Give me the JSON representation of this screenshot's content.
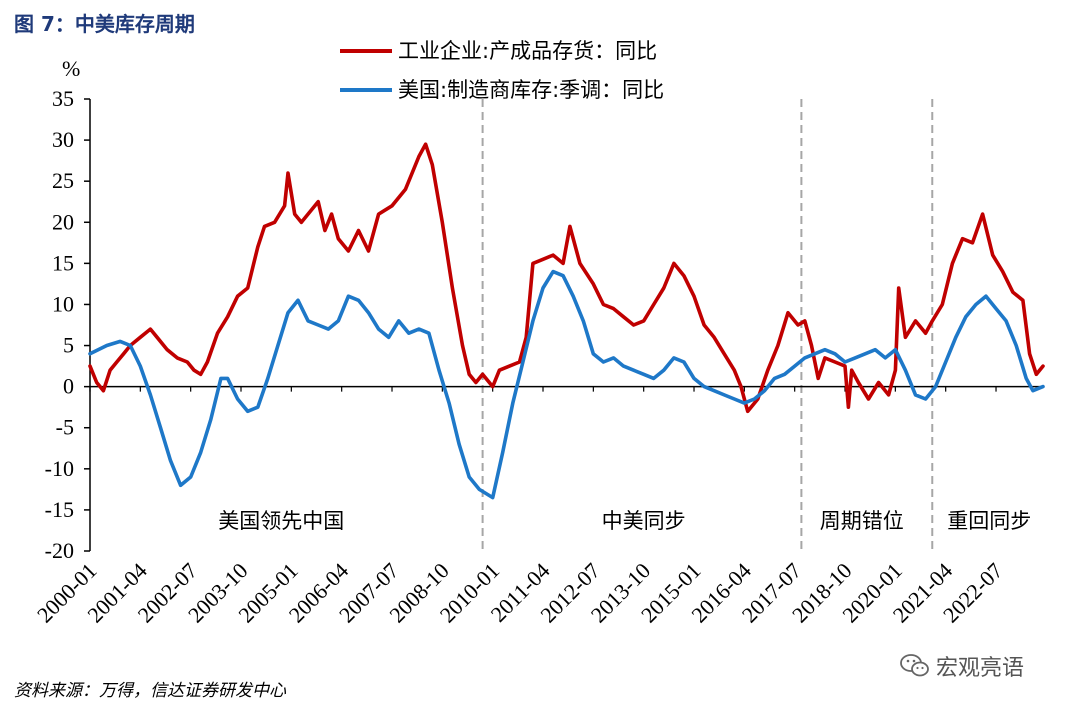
{
  "figure": {
    "title": "图 7：中美库存周期",
    "source": "资料来源：万得，信达证券研发中心",
    "watermark": "宏观亮语"
  },
  "colors": {
    "series1": "#c00000",
    "series2": "#1e78c8",
    "divider": "#a6a6a6"
  },
  "chart_data": {
    "type": "line",
    "ylabel": "%",
    "ylim": [
      -20,
      35
    ],
    "yticks": [
      35,
      30,
      25,
      20,
      15,
      10,
      5,
      0,
      -5,
      -10,
      -15,
      -20
    ],
    "xlim": [
      "2000-01",
      "2023-09"
    ],
    "xticks": [
      "2000-01",
      "2001-04",
      "2002-07",
      "2003-10",
      "2005-01",
      "2006-04",
      "2007-07",
      "2008-10",
      "2010-01",
      "2011-04",
      "2012-07",
      "2013-10",
      "2015-01",
      "2016-04",
      "2017-07",
      "2018-10",
      "2020-01",
      "2021-04",
      "2022-07"
    ],
    "grid": false,
    "legend_position": "top-center",
    "dividers": [
      "2009-10",
      "2017-09",
      "2020-12"
    ],
    "regions": [
      {
        "label": "美国领先中国",
        "center": "2004-10"
      },
      {
        "label": "中美同步",
        "center": "2013-10"
      },
      {
        "label": "周期错位",
        "center": "2019-03"
      },
      {
        "label": "重回同步",
        "center": "2022-05"
      }
    ],
    "series": [
      {
        "name": "工业企业:产成品存货：同比",
        "points": [
          [
            "2000-01",
            2.5
          ],
          [
            "2000-03",
            0.5
          ],
          [
            "2000-05",
            -0.5
          ],
          [
            "2000-07",
            2.0
          ],
          [
            "2000-09",
            3.0
          ],
          [
            "2000-11",
            4.0
          ],
          [
            "2001-01",
            5.0
          ],
          [
            "2001-04",
            6.0
          ],
          [
            "2001-07",
            7.0
          ],
          [
            "2001-09",
            6.0
          ],
          [
            "2001-12",
            4.5
          ],
          [
            "2002-03",
            3.5
          ],
          [
            "2002-06",
            3.0
          ],
          [
            "2002-08",
            2.0
          ],
          [
            "2002-10",
            1.5
          ],
          [
            "2002-12",
            3.0
          ],
          [
            "2003-03",
            6.5
          ],
          [
            "2003-06",
            8.5
          ],
          [
            "2003-09",
            11.0
          ],
          [
            "2003-12",
            12.0
          ],
          [
            "2004-03",
            17.0
          ],
          [
            "2004-05",
            19.5
          ],
          [
            "2004-08",
            20.0
          ],
          [
            "2004-11",
            22.0
          ],
          [
            "2004-12",
            26.0
          ],
          [
            "2005-02",
            21.0
          ],
          [
            "2005-04",
            20.0
          ],
          [
            "2005-07",
            21.5
          ],
          [
            "2005-09",
            22.5
          ],
          [
            "2005-11",
            19.0
          ],
          [
            "2006-01",
            21.0
          ],
          [
            "2006-03",
            18.0
          ],
          [
            "2006-06",
            16.5
          ],
          [
            "2006-09",
            19.0
          ],
          [
            "2006-12",
            16.5
          ],
          [
            "2007-03",
            21.0
          ],
          [
            "2007-07",
            22.0
          ],
          [
            "2007-11",
            24.0
          ],
          [
            "2008-03",
            28.0
          ],
          [
            "2008-05",
            29.5
          ],
          [
            "2008-07",
            27.0
          ],
          [
            "2008-10",
            20.0
          ],
          [
            "2009-01",
            12.0
          ],
          [
            "2009-04",
            5.0
          ],
          [
            "2009-06",
            1.5
          ],
          [
            "2009-08",
            0.5
          ],
          [
            "2009-10",
            1.5
          ],
          [
            "2010-01",
            0.0
          ],
          [
            "2010-03",
            2.0
          ],
          [
            "2010-06",
            2.5
          ],
          [
            "2010-09",
            3.0
          ],
          [
            "2010-11",
            6.0
          ],
          [
            "2011-01",
            15.0
          ],
          [
            "2011-04",
            15.5
          ],
          [
            "2011-07",
            16.0
          ],
          [
            "2011-10",
            15.0
          ],
          [
            "2011-12",
            19.5
          ],
          [
            "2012-03",
            15.0
          ],
          [
            "2012-07",
            12.5
          ],
          [
            "2012-10",
            10.0
          ],
          [
            "2013-01",
            9.5
          ],
          [
            "2013-04",
            8.5
          ],
          [
            "2013-07",
            7.5
          ],
          [
            "2013-10",
            8.0
          ],
          [
            "2014-01",
            10.0
          ],
          [
            "2014-04",
            12.0
          ],
          [
            "2014-07",
            15.0
          ],
          [
            "2014-10",
            13.5
          ],
          [
            "2015-01",
            11.0
          ],
          [
            "2015-04",
            7.5
          ],
          [
            "2015-07",
            6.0
          ],
          [
            "2015-10",
            4.0
          ],
          [
            "2016-01",
            2.0
          ],
          [
            "2016-03",
            0.0
          ],
          [
            "2016-05",
            -3.0
          ],
          [
            "2016-08",
            -1.5
          ],
          [
            "2016-11",
            2.0
          ],
          [
            "2017-02",
            5.0
          ],
          [
            "2017-05",
            9.0
          ],
          [
            "2017-08",
            7.5
          ],
          [
            "2017-10",
            8.0
          ],
          [
            "2017-12",
            5.0
          ],
          [
            "2018-02",
            1.0
          ],
          [
            "2018-04",
            3.5
          ],
          [
            "2018-07",
            3.0
          ],
          [
            "2018-10",
            2.5
          ],
          [
            "2018-11",
            -2.5
          ],
          [
            "2018-12",
            2.0
          ],
          [
            "2019-02",
            0.5
          ],
          [
            "2019-05",
            -1.5
          ],
          [
            "2019-08",
            0.5
          ],
          [
            "2019-11",
            -1.0
          ],
          [
            "2020-01",
            2.0
          ],
          [
            "2020-02",
            12.0
          ],
          [
            "2020-04",
            6.0
          ],
          [
            "2020-07",
            8.0
          ],
          [
            "2020-10",
            6.5
          ],
          [
            "2020-12",
            8.0
          ],
          [
            "2021-03",
            10.0
          ],
          [
            "2021-06",
            15.0
          ],
          [
            "2021-09",
            18.0
          ],
          [
            "2021-12",
            17.5
          ],
          [
            "2022-03",
            21.0
          ],
          [
            "2022-06",
            16.0
          ],
          [
            "2022-09",
            14.0
          ],
          [
            "2022-12",
            11.5
          ],
          [
            "2023-03",
            10.5
          ],
          [
            "2023-05",
            4.0
          ],
          [
            "2023-07",
            1.5
          ],
          [
            "2023-09",
            2.5
          ]
        ]
      },
      {
        "name": "美国:制造商库存:季调：同比",
        "points": [
          [
            "2000-01",
            4.0
          ],
          [
            "2000-06",
            5.0
          ],
          [
            "2000-10",
            5.5
          ],
          [
            "2001-01",
            5.0
          ],
          [
            "2001-04",
            2.5
          ],
          [
            "2001-07",
            -1.0
          ],
          [
            "2001-10",
            -5.0
          ],
          [
            "2002-01",
            -9.0
          ],
          [
            "2002-04",
            -12.0
          ],
          [
            "2002-07",
            -11.0
          ],
          [
            "2002-10",
            -8.0
          ],
          [
            "2003-01",
            -4.0
          ],
          [
            "2003-04",
            1.0
          ],
          [
            "2003-06",
            1.0
          ],
          [
            "2003-09",
            -1.5
          ],
          [
            "2003-12",
            -3.0
          ],
          [
            "2004-03",
            -2.5
          ],
          [
            "2004-06",
            1.0
          ],
          [
            "2004-09",
            5.0
          ],
          [
            "2004-12",
            9.0
          ],
          [
            "2005-03",
            10.5
          ],
          [
            "2005-06",
            8.0
          ],
          [
            "2005-09",
            7.5
          ],
          [
            "2005-12",
            7.0
          ],
          [
            "2006-03",
            8.0
          ],
          [
            "2006-06",
            11.0
          ],
          [
            "2006-09",
            10.5
          ],
          [
            "2006-12",
            9.0
          ],
          [
            "2007-03",
            7.0
          ],
          [
            "2007-06",
            6.0
          ],
          [
            "2007-09",
            8.0
          ],
          [
            "2007-12",
            6.5
          ],
          [
            "2008-03",
            7.0
          ],
          [
            "2008-06",
            6.5
          ],
          [
            "2008-09",
            2.0
          ],
          [
            "2008-12",
            -2.0
          ],
          [
            "2009-03",
            -7.0
          ],
          [
            "2009-06",
            -11.0
          ],
          [
            "2009-09",
            -12.5
          ],
          [
            "2009-11",
            -13.0
          ],
          [
            "2010-01",
            -13.5
          ],
          [
            "2010-04",
            -8.0
          ],
          [
            "2010-07",
            -2.0
          ],
          [
            "2010-10",
            3.0
          ],
          [
            "2011-01",
            8.0
          ],
          [
            "2011-04",
            12.0
          ],
          [
            "2011-07",
            14.0
          ],
          [
            "2011-10",
            13.5
          ],
          [
            "2012-01",
            11.0
          ],
          [
            "2012-04",
            8.0
          ],
          [
            "2012-07",
            4.0
          ],
          [
            "2012-10",
            3.0
          ],
          [
            "2013-01",
            3.5
          ],
          [
            "2013-04",
            2.5
          ],
          [
            "2013-07",
            2.0
          ],
          [
            "2013-10",
            1.5
          ],
          [
            "2014-01",
            1.0
          ],
          [
            "2014-04",
            2.0
          ],
          [
            "2014-07",
            3.5
          ],
          [
            "2014-10",
            3.0
          ],
          [
            "2015-01",
            1.0
          ],
          [
            "2015-04",
            0.0
          ],
          [
            "2015-07",
            -0.5
          ],
          [
            "2015-10",
            -1.0
          ],
          [
            "2016-01",
            -1.5
          ],
          [
            "2016-04",
            -2.0
          ],
          [
            "2016-07",
            -1.5
          ],
          [
            "2016-10",
            -0.5
          ],
          [
            "2017-01",
            1.0
          ],
          [
            "2017-04",
            1.5
          ],
          [
            "2017-07",
            2.5
          ],
          [
            "2017-10",
            3.5
          ],
          [
            "2018-01",
            4.0
          ],
          [
            "2018-04",
            4.5
          ],
          [
            "2018-07",
            4.0
          ],
          [
            "2018-10",
            3.0
          ],
          [
            "2019-01",
            3.5
          ],
          [
            "2019-04",
            4.0
          ],
          [
            "2019-07",
            4.5
          ],
          [
            "2019-10",
            3.5
          ],
          [
            "2020-01",
            4.5
          ],
          [
            "2020-04",
            2.0
          ],
          [
            "2020-07",
            -1.0
          ],
          [
            "2020-10",
            -1.5
          ],
          [
            "2021-01",
            0.0
          ],
          [
            "2021-04",
            3.0
          ],
          [
            "2021-07",
            6.0
          ],
          [
            "2021-10",
            8.5
          ],
          [
            "2022-01",
            10.0
          ],
          [
            "2022-04",
            11.0
          ],
          [
            "2022-07",
            9.5
          ],
          [
            "2022-10",
            8.0
          ],
          [
            "2023-01",
            5.0
          ],
          [
            "2023-04",
            1.0
          ],
          [
            "2023-06",
            -0.5
          ],
          [
            "2023-09",
            0.0
          ]
        ]
      }
    ]
  }
}
